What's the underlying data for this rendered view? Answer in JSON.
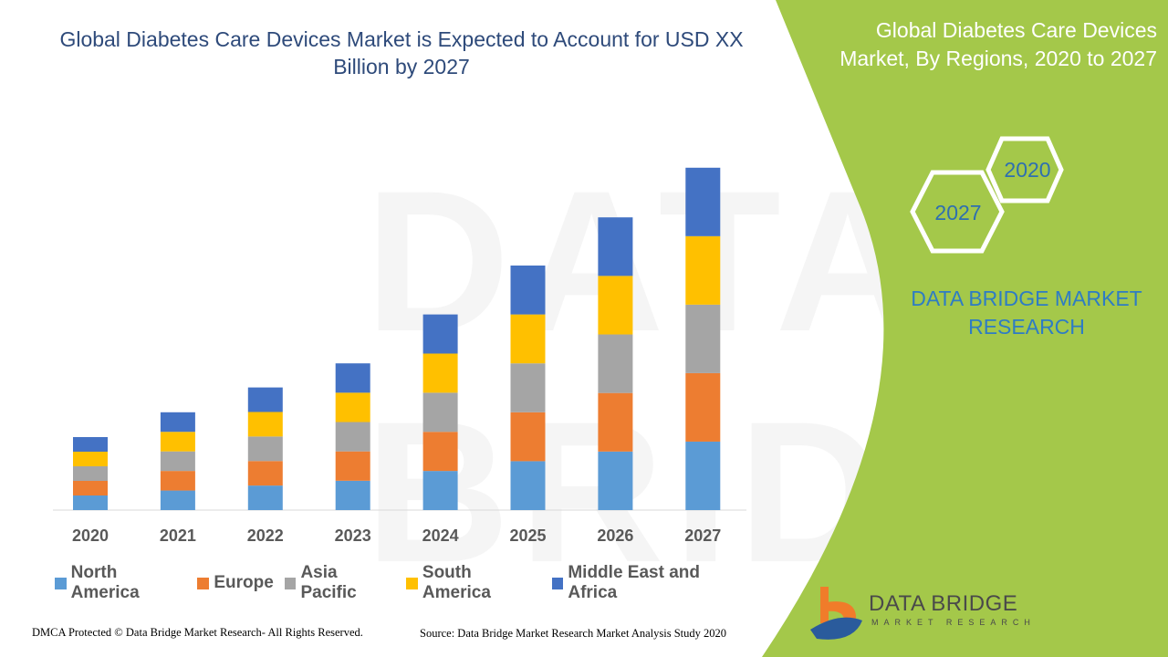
{
  "title": "Global Diabetes Care Devices Market is Expected to Account for USD XX Billion by 2027",
  "panel": {
    "title": "Global Diabetes Care Devices Market, By Regions, 2020 to 2027",
    "hex_years": [
      "2020",
      "2027"
    ],
    "brand": "DATA BRIDGE MARKET RESEARCH",
    "logo_text": "DATA BRIDGE",
    "logo_subtext": "MARKET RESEARCH",
    "colors": {
      "panel": "#a4c84a",
      "hex_text": "#2e6fb0"
    }
  },
  "footer": {
    "dmca": "DMCA Protected © Data Bridge Market Research- All Rights Reserved.",
    "source": "Source: Data Bridge Market Research Market Analysis Study 2020"
  },
  "chart_data": {
    "type": "bar",
    "stacked": true,
    "title": "Global Diabetes Care Devices Market is Expected to Account for USD XX Billion by 2027",
    "xlabel": "",
    "ylabel": "",
    "y_axis_shown": false,
    "grid": false,
    "legend_position": "bottom",
    "categories": [
      "2020",
      "2021",
      "2022",
      "2023",
      "2024",
      "2025",
      "2026",
      "2027"
    ],
    "series": [
      {
        "name": "North America",
        "color": "#5b9bd5",
        "values": [
          1.0,
          1.34,
          1.68,
          2.01,
          2.68,
          3.35,
          4.01,
          4.69
        ]
      },
      {
        "name": "Europe",
        "color": "#ed7d31",
        "values": [
          1.0,
          1.34,
          1.68,
          2.01,
          2.68,
          3.35,
          4.01,
          4.69
        ]
      },
      {
        "name": "Asia Pacific",
        "color": "#a5a5a5",
        "values": [
          1.0,
          1.34,
          1.68,
          2.01,
          2.68,
          3.35,
          4.01,
          4.69
        ]
      },
      {
        "name": "South America",
        "color": "#ffc000",
        "values": [
          1.0,
          1.34,
          1.68,
          2.01,
          2.68,
          3.35,
          4.01,
          4.69
        ]
      },
      {
        "name": "Middle East and Africa",
        "color": "#4472c4",
        "values": [
          1.0,
          1.34,
          1.68,
          2.01,
          2.68,
          3.35,
          4.01,
          4.69
        ]
      }
    ]
  }
}
